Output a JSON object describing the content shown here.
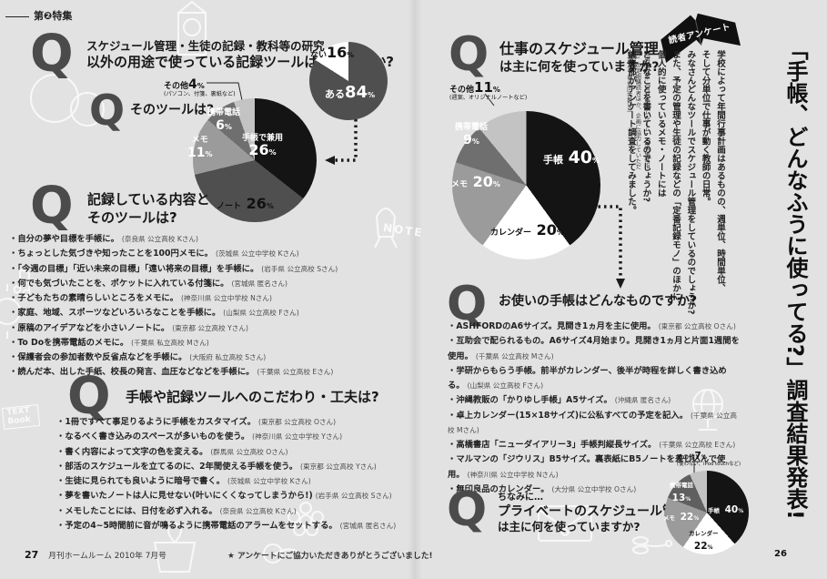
{
  "units": {
    "percent": "%"
  },
  "spread": {
    "feature_tag": "第❷特集",
    "footer_left": {
      "page_no": "27",
      "magazine": "月刊ホームルーム 2010年 7月号"
    },
    "footer_thanks": "★ アンケートにご協力いただきありがとうございました!",
    "footer_right": {
      "page_no": "26"
    }
  },
  "left_page": {
    "q1": {
      "mark": "Q",
      "line1": "スケジュール管理・生徒の記録・教科等の研究",
      "line2": {
        "b1": "以外の用途",
        "t1": "で使っている",
        "b2": "記録ツール",
        "t2": "はありますか?"
      }
    },
    "q2": {
      "mark": "Q",
      "t1": "その",
      "b1": "ツール",
      "t2": "は?"
    },
    "q3": {
      "mark": "Q",
      "line1": {
        "t1": "記録している",
        "b1": "内容",
        "t2": "と"
      },
      "line2": "そのツールは?",
      "items": [
        {
          "text": "自分の夢や目標を手帳に。",
          "src": "(奈良県 公立高校 Kさん)"
        },
        {
          "text": "ちょっとした気づきや知ったことを100円メモに。",
          "src": "(茨城県 公立中学校 Kさん)"
        },
        {
          "text": "「今週の目標」「近い未来の目標」「遠い将来の目標」を手帳に。",
          "src": "(岩手県 公立高校 Sさん)"
        },
        {
          "text": "何でも気づいたことを、ポケットに入れている付箋に。",
          "src": "(宮城県 匿名さん)"
        },
        {
          "text": "子どもたちの素晴らしいところをメモに。",
          "src": "(神奈川県 公立中学校 Nさん)"
        },
        {
          "text": "家庭、地域、スポーツなどいろいろなことを手帳に。",
          "src": "(山梨県 公立高校 Fさん)"
        },
        {
          "text": "原稿のアイデアなどを小さいノートに。",
          "src": "(東京都 公立高校 Yさん)"
        },
        {
          "text": "To Doを携帯電話のメモに。",
          "src": "(千葉県 私立高校 Mさん)"
        },
        {
          "text": "保護者会の参加者数や反省点などを手帳に。",
          "src": "(大阪府 私立高校 Sさん)"
        },
        {
          "text": "読んだ本、出した手紙、校長の発言、血圧などなどを手帳に。",
          "src": "(千葉県 公立高校 Eさん)"
        }
      ]
    },
    "q4": {
      "mark": "Q",
      "t1": "手帳や記録ツールへの",
      "b1": "こだわり・工夫",
      "t2": "は?",
      "items": [
        {
          "text": "1冊ですべて事足りるように手帳をカスタマイズ。",
          "src": "(東京都 公立高校 Oさん)"
        },
        {
          "text": "なるべく書き込みのスペースが多いものを使う。",
          "src": "(神奈川県 公立中学校 Yさん)"
        },
        {
          "text": "書く内容によって文字の色を変える。",
          "src": "(群馬県 公立高校 Oさん)"
        },
        {
          "text": "部活のスケジュールを立てるのに、2年間使える手帳を使う。",
          "src": "(東京都 公立高校 Yさん)"
        },
        {
          "text": "生徒に見られても良いように暗号で書く。",
          "src": "(茨城県 公立中学校 Kさん)"
        },
        {
          "text": "夢を書いたノートは人に見せない(叶いにくくなってしまうから!)",
          "src": "(岩手県 公立高校 Sさん)"
        },
        {
          "text": "メモしたことには、日付を必ず入れる。",
          "src": "(奈良県 公立高校 Kさん)"
        },
        {
          "text": "予定の4~5時間前に音が鳴るように携帯電話のアラームをセットする。",
          "src": "(宮城県 匿名さん)"
        }
      ]
    }
  },
  "right_page": {
    "tab": "読者アンケート",
    "title": "「手帳、どんなふうに使ってる?」調査結果発表!",
    "intro": "学校によって年間行事計画はあるものの、週単位、時間単位、\nそして分単位で仕事が動く教師の日常。\nみなさんどんなツールでスケジュール管理をしているのでしょうか?\nまた、予定の管理や生徒の記録などの「定番記録モノ」のほかに、\n個人的に使っているメモ・ノートには\nどんなことを書いているのでしょうか?\n編集部がアンケート調査をしてみました。",
    "note": "〔調査対象:「月刊ホームルーム」「月刊生徒指導」の定期購読者ほか、企画に協力していただいた方々 有効回答数39〕",
    "q5": {
      "mark": "Q",
      "b1": "仕事のスケジュール管理",
      "t1": "は主に何を使っていますか?"
    },
    "q6": {
      "mark": "Q",
      "t1": "お使いの",
      "b1": "手帳",
      "t2": "はどんなものですか?",
      "items": [
        {
          "text": "ASHFORDのA6サイズ。見開き1ヵ月を主に使用。",
          "src": "(東京都 公立高校 Oさん)"
        },
        {
          "text": "互助会で配られるもの。A6サイズ4月始まり。見開き1ヵ月と片面1週間を使用。",
          "src": "(千葉県 公立高校 Mさん)"
        },
        {
          "text": "学研からもらう手帳。前半がカレンダー、後半が時程を詳しく書き込める。",
          "src": "(山梨県 公立高校 Fさん)"
        },
        {
          "text": "沖縄教販の「かりゆし手帳」A5サイズ。",
          "src": "(沖縄県 匿名さん)"
        },
        {
          "text": "卓上カレンダー(15×18サイズ)に公私すべての予定を記入。",
          "src": "(千葉県 公立高校 Mさん)"
        },
        {
          "text": "高橋書店「ニューダイアリー3」手帳判縦長サイズ。",
          "src": "(千葉県 公立高校 Eさん)"
        },
        {
          "text": "マルマンの「ジウリス」B5サイズ。裏表紙にB5ノートを差し込んで使用。",
          "src": "(神奈川県 公立中学校 Nさん)"
        },
        {
          "text": "無印良品のカレンダー。",
          "src": "(大分県 公立中学校 Oさん)"
        }
      ]
    },
    "q7": {
      "mark": "Q",
      "t0": "ちなみに…",
      "b1": "プライベートのスケジュール管理",
      "t1": "は主に何を使っていますか?"
    }
  },
  "chart_data": [
    {
      "type": "pie",
      "title": "スケジュール管理・生徒の記録・教科等の研究以外の用途で使っている記録ツールはありますか?",
      "segments": [
        {
          "label": "ある",
          "value": 84,
          "color": "#4f4f4f"
        },
        {
          "label": "ない",
          "value": 16,
          "color": "#ffffff"
        }
      ]
    },
    {
      "type": "pie",
      "title": "そのツールは?",
      "segments": [
        {
          "label": "手帳で兼用",
          "value": 26,
          "color": "#141414"
        },
        {
          "label": "ノート",
          "value": 26,
          "color": "#4f4f4f"
        },
        {
          "label": "メモ",
          "value": 11,
          "color": "#9b9b9b"
        },
        {
          "label": "携帯電話",
          "value": 6,
          "color": "#6f6f6f"
        },
        {
          "label": "その他",
          "value": 4,
          "color": "#c3c3c3",
          "note": "(パソコン、付箋、裏紙など)"
        }
      ]
    },
    {
      "type": "pie",
      "title": "仕事のスケジュール管理は主に何を使っていますか?",
      "segments": [
        {
          "label": "手帳",
          "value": 40,
          "color": "#141414"
        },
        {
          "label": "カレンダー",
          "value": 20,
          "color": "#ffffff"
        },
        {
          "label": "メモ",
          "value": 20,
          "color": "#9b9b9b"
        },
        {
          "label": "携帯電話",
          "value": 9,
          "color": "#6f6f6f"
        },
        {
          "label": "その他",
          "value": 11,
          "color": "#c3c3c3",
          "note": "(週案、オリジナルノートなど)"
        }
      ]
    },
    {
      "type": "pie",
      "title": "ちなみに…プライベートのスケジュール管理は主に何を使っていますか?",
      "segments": [
        {
          "label": "手帳",
          "value": 40,
          "color": "#141414"
        },
        {
          "label": "カレンダー",
          "value": 22,
          "color": "#ffffff"
        },
        {
          "label": "メモ",
          "value": 22,
          "color": "#9b9b9b"
        },
        {
          "label": "携帯電話",
          "value": 13,
          "color": "#5f5f5f"
        },
        {
          "label": "その他",
          "value": 7,
          "color": "#c3c3c3",
          "note": "(使わない、iPod touchなど)"
        }
      ]
    }
  ],
  "doodles": {
    "text_book": "TEXT Book",
    "note_stamp": "NOTE"
  }
}
